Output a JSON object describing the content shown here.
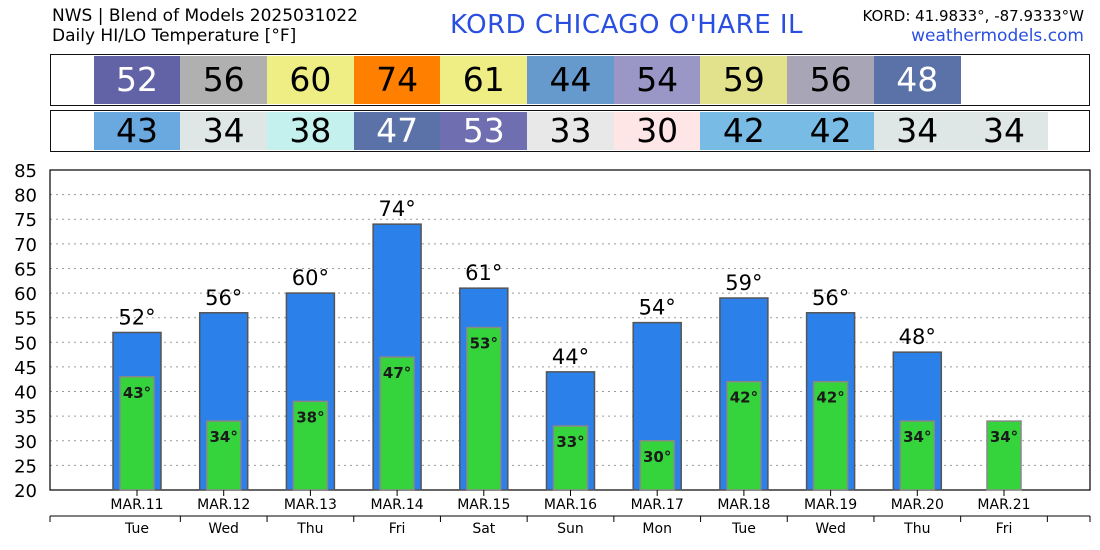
{
  "header": {
    "title_line1": "NWS | Blend of Models 2025031022",
    "title_line2": "Daily HI/LO Temperature [°F]",
    "station": "KORD   CHICAGO O'HARE  IL",
    "coords": "KORD: 41.9833°, -87.9333°W",
    "site": "weathermodels.com"
  },
  "hi_strip": [
    {
      "value": "52",
      "color": "#6262a6",
      "text_color": "#ffffff"
    },
    {
      "value": "56",
      "color": "#b0b0b0",
      "text_color": "#000000"
    },
    {
      "value": "60",
      "color": "#eeee84",
      "text_color": "#000000"
    },
    {
      "value": "74",
      "color": "#ff8000",
      "text_color": "#000000"
    },
    {
      "value": "61",
      "color": "#eeee84",
      "text_color": "#000000"
    },
    {
      "value": "44",
      "color": "#6699cc",
      "text_color": "#000000"
    },
    {
      "value": "54",
      "color": "#9a96c6",
      "text_color": "#000000"
    },
    {
      "value": "59",
      "color": "#e2e28c",
      "text_color": "#000000"
    },
    {
      "value": "56",
      "color": "#a8a6b6",
      "text_color": "#000000"
    },
    {
      "value": "48",
      "color": "#5a72a8",
      "text_color": "#ffffff"
    }
  ],
  "lo_strip": [
    {
      "value": "43",
      "color": "#6aa8e0",
      "text_color": "#000000"
    },
    {
      "value": "34",
      "color": "#dfe6e6",
      "text_color": "#000000"
    },
    {
      "value": "38",
      "color": "#c4f0ee",
      "text_color": "#000000"
    },
    {
      "value": "47",
      "color": "#5a72a8",
      "text_color": "#ffffff"
    },
    {
      "value": "53",
      "color": "#6e6eb0",
      "text_color": "#ffffff"
    },
    {
      "value": "33",
      "color": "#e8e8e8",
      "text_color": "#000000"
    },
    {
      "value": "30",
      "color": "#ffe6e6",
      "text_color": "#000000"
    },
    {
      "value": "42",
      "color": "#78bce6",
      "text_color": "#000000"
    },
    {
      "value": "42",
      "color": "#78bce6",
      "text_color": "#000000"
    },
    {
      "value": "34",
      "color": "#dfe6e6",
      "text_color": "#000000"
    },
    {
      "value": "34",
      "color": "#dfe6e6",
      "text_color": "#000000"
    }
  ],
  "chart_data": {
    "type": "bar",
    "categories": [
      "MAR.11",
      "MAR.12",
      "MAR.13",
      "MAR.14",
      "MAR.15",
      "MAR.16",
      "MAR.17",
      "MAR.18",
      "MAR.19",
      "MAR.20",
      "MAR.21"
    ],
    "weekdays": [
      "Tue",
      "Wed",
      "Thu",
      "Fri",
      "Sat",
      "Sun",
      "Mon",
      "Tue",
      "Wed",
      "Thu",
      "Fri"
    ],
    "series": [
      {
        "values": [
          52,
          56,
          60,
          74,
          61,
          44,
          54,
          59,
          56,
          48,
          null
        ],
        "color": "#2b80ea",
        "labels": [
          "52°",
          "56°",
          "60°",
          "74°",
          "61°",
          "44°",
          "54°",
          "59°",
          "56°",
          "48°",
          ""
        ]
      },
      {
        "values": [
          43,
          34,
          38,
          47,
          53,
          33,
          30,
          42,
          42,
          34,
          34
        ],
        "color": "#36d43c",
        "labels": [
          "43°",
          "34°",
          "38°",
          "47°",
          "53°",
          "33°",
          "30°",
          "42°",
          "42°",
          "34°",
          "34°"
        ]
      }
    ],
    "ylim": [
      20,
      85
    ],
    "yticks": [
      "20",
      "25",
      "30",
      "35",
      "40",
      "45",
      "50",
      "55",
      "60",
      "65",
      "70",
      "75",
      "80",
      "85"
    ],
    "grid": true
  }
}
